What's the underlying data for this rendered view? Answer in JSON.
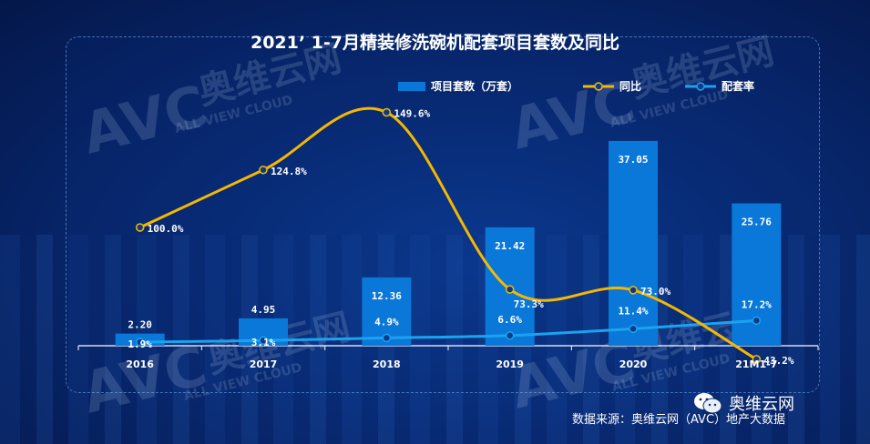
{
  "title": "2021’ 1-7月精装修洗碗机配套项目套数及同比",
  "source": "数据来源：奥维云网（AVC）地产大数据",
  "brand": "奥维云网",
  "watermark": {
    "logo": "AVC",
    "cn": "奥维云网",
    "en": "ALL VIEW CLOUD"
  },
  "colors": {
    "bar": "#0a78d8",
    "yoy": "#f5b800",
    "rate": "#1aa3ef"
  },
  "chart_data": {
    "type": "bar",
    "categories": [
      "2016",
      "2017",
      "2018",
      "2019",
      "2020",
      "21M1-7"
    ],
    "ylim": [
      0,
      40
    ],
    "series": [
      {
        "name": "项目套数（万套）",
        "type": "bar",
        "values": [
          2.2,
          4.95,
          12.36,
          21.42,
          37.05,
          25.76
        ],
        "labels": [
          "2.20",
          "4.95",
          "12.36",
          "21.42",
          "37.05",
          "25.76"
        ]
      },
      {
        "name": "同比",
        "type": "line",
        "values": [
          100.0,
          124.8,
          149.6,
          73.3,
          73.0,
          43.2
        ],
        "labels": [
          "100.0%",
          "124.8%",
          "149.6%",
          "73.3%",
          "73.0%",
          "43.2%"
        ]
      },
      {
        "name": "配套率",
        "type": "line",
        "values": [
          1.9,
          3.1,
          4.9,
          6.6,
          11.4,
          17.2
        ],
        "labels": [
          "1.9%",
          "3.1%",
          "4.9%",
          "6.6%",
          "11.4%",
          "17.2%"
        ]
      }
    ],
    "legend": "top"
  }
}
